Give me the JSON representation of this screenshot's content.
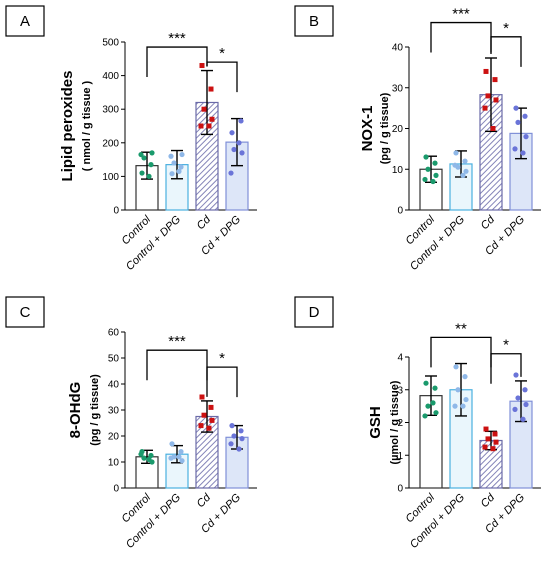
{
  "colors": {
    "control_fill": "#ffffff",
    "control_edge": "#333333",
    "control_dots": "#1a9a6c",
    "control_dpg_fill": "#eaf6fc",
    "control_dpg_edge": "#4ab0e0",
    "control_dpg_dots": "#8fb8e8",
    "cd_hatch": "#8484b8",
    "cd_edge": "#6a6aa8",
    "cd_dots": "#cc1111",
    "cd_dpg_fill": "#dde6f8",
    "cd_dpg_edge": "#8090d8",
    "cd_dpg_dots": "#6a74d8"
  },
  "chart_data": [
    {
      "panel": "A",
      "type": "bar",
      "ylabel": "Lipid peroxides",
      "yunit": "( nmol / g tissue )",
      "ylim": [
        0,
        500
      ],
      "yticks": [
        0,
        100,
        200,
        300,
        400,
        500
      ],
      "categories": [
        "Control",
        "Control + DPG",
        "Cd",
        "Cd + DPG"
      ],
      "values": [
        132,
        135,
        320,
        202
      ],
      "errors": [
        40,
        42,
        95,
        70
      ],
      "points": [
        [
          110,
          135,
          155,
          170,
          165,
          100
        ],
        [
          108,
          128,
          140,
          165,
          160,
          115
        ],
        [
          430,
          360,
          300,
          270,
          250,
          250
        ],
        [
          230,
          265,
          180,
          170,
          110,
          200
        ]
      ],
      "significance": [
        {
          "from": 0,
          "to": 2,
          "label": "***",
          "y": 485
        },
        {
          "from": 2,
          "to": 3,
          "label": "*",
          "y": 440
        }
      ]
    },
    {
      "panel": "B",
      "type": "bar",
      "ylabel": "NOX-1",
      "yunit": "(pg / g tissue)",
      "ylim": [
        0,
        40
      ],
      "yticks": [
        0,
        10,
        20,
        30,
        40
      ],
      "categories": [
        "Control",
        "Control + DPG",
        "Cd",
        "Cd + DPG"
      ],
      "values": [
        10,
        11.3,
        28.3,
        18.8
      ],
      "errors": [
        3.2,
        3.2,
        9,
        6.2
      ],
      "points": [
        [
          13,
          11.5,
          10,
          8.5,
          7.5,
          7
        ],
        [
          14,
          12,
          10.5,
          9.5,
          11,
          8.5
        ],
        [
          34,
          32,
          28,
          27,
          25,
          20
        ],
        [
          25,
          23,
          21.5,
          18,
          15,
          14
        ]
      ],
      "significance": [
        {
          "from": 0,
          "to": 2,
          "label": "***",
          "y": 46
        },
        {
          "from": 2,
          "to": 3,
          "label": "*",
          "y": 42.5
        }
      ]
    },
    {
      "panel": "C",
      "type": "bar",
      "ylabel": "8-OHdG",
      "yunit": "(pg / g tissue)",
      "ylim": [
        0,
        60
      ],
      "yticks": [
        0,
        10,
        20,
        30,
        40,
        50,
        60
      ],
      "categories": [
        "Control",
        "Control + DPG",
        "Cd",
        "Cd + DPG"
      ],
      "values": [
        12,
        13,
        27.5,
        19.5
      ],
      "errors": [
        2.5,
        3.3,
        6,
        4.5
      ],
      "points": [
        [
          14,
          12.5,
          11.5,
          10,
          13,
          11
        ],
        [
          17,
          14,
          12,
          10.5,
          11.5,
          12
        ],
        [
          35,
          31,
          28,
          26,
          24,
          23
        ],
        [
          24,
          22,
          20,
          19,
          17,
          15
        ]
      ],
      "significance": [
        {
          "from": 0,
          "to": 2,
          "label": "***",
          "y": 53
        },
        {
          "from": 2,
          "to": 3,
          "label": "*",
          "y": 46.5
        }
      ]
    },
    {
      "panel": "D",
      "type": "bar",
      "ylabel": "GSH",
      "yunit": "(µmol / g tissue)",
      "ylim": [
        0,
        4
      ],
      "yticks": [
        0,
        1,
        2,
        3,
        4
      ],
      "categories": [
        "Control",
        "Control + DPG",
        "Cd",
        "Cd + DPG"
      ],
      "values": [
        2.82,
        3.0,
        1.45,
        2.65
      ],
      "errors": [
        0.6,
        0.8,
        0.28,
        0.62
      ],
      "points": [
        [
          3.2,
          3.05,
          2.5,
          2.3,
          2.2,
          2.6
        ],
        [
          3.7,
          3.4,
          3.0,
          2.7,
          2.5,
          2.5
        ],
        [
          1.8,
          1.65,
          1.5,
          1.4,
          1.25,
          1.2
        ],
        [
          3.45,
          3.0,
          2.75,
          2.55,
          2.4,
          2.1
        ]
      ],
      "significance": [
        {
          "from": 0,
          "to": 2,
          "label": "**",
          "y": 4.6
        },
        {
          "from": 2,
          "to": 3,
          "label": "*",
          "y": 4.1
        }
      ]
    }
  ]
}
